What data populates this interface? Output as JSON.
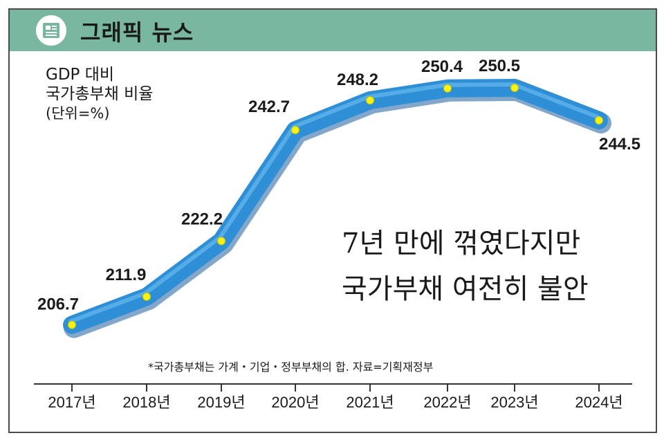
{
  "header": {
    "title": "그래픽 뉴스",
    "icon": "news-icon"
  },
  "headline": {
    "line1": "7년 만에 꺾였다지만",
    "line2": "국가부채 여전히 불안"
  },
  "note": "*국가총부채는 가계・기업・정부부채의 합. 자료=기획재정부",
  "colors": {
    "header": "#79b89e",
    "line": "#2f8fd6",
    "point": "#f5f21a"
  },
  "chart_data": {
    "type": "line",
    "title": "GDP 대비 국가총부채 비율",
    "ylabel_lines": [
      "GDP 대비",
      "국가총부채 비율"
    ],
    "unit": "(단위=%)",
    "categories": [
      "2017년",
      "2018년",
      "2019년",
      "2020년",
      "2021년",
      "2022년",
      "2023년",
      "2024년"
    ],
    "values": [
      206.7,
      211.9,
      222.2,
      242.7,
      248.2,
      250.4,
      250.5,
      244.5
    ],
    "value_labels": [
      "206.7",
      "211.9",
      "222.2",
      "242.7",
      "248.2",
      "250.4",
      "250.5",
      "244.5"
    ],
    "ylim": [
      200,
      256
    ],
    "grid": false,
    "legend": "none"
  }
}
